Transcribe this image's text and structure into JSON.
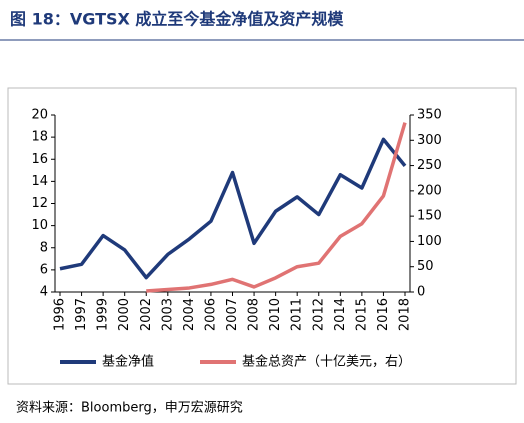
{
  "chart_data": {
    "type": "line",
    "title": "图 18：VGTSX 成立至今基金净值及资产规模",
    "categories": [
      "1996",
      "1997",
      "1999",
      "2000",
      "2002",
      "2003",
      "2004",
      "2006",
      "2007",
      "2008",
      "2010",
      "2011",
      "2012",
      "2014",
      "2015",
      "2016",
      "2018"
    ],
    "series": [
      {
        "name": "基金净值",
        "color": "#1f3a7a",
        "axis": "y",
        "values": [
          6.1,
          6.5,
          9.1,
          7.8,
          5.3,
          7.4,
          8.8,
          10.4,
          14.8,
          8.4,
          11.3,
          12.6,
          11.0,
          14.6,
          13.4,
          17.8,
          15.4
        ]
      },
      {
        "name": "基金总资产（十亿美元，右）",
        "color": "#e07373",
        "axis": "y2",
        "values": [
          null,
          null,
          null,
          null,
          2,
          5,
          8,
          15,
          25,
          10,
          28,
          50,
          57,
          110,
          135,
          190,
          335
        ]
      }
    ],
    "ylim": [
      4,
      20
    ],
    "yticks": [
      4,
      6,
      8,
      10,
      12,
      14,
      16,
      18,
      20
    ],
    "y2lim": [
      0,
      350
    ],
    "y2ticks": [
      0,
      50,
      100,
      150,
      200,
      250,
      300,
      350
    ],
    "legend": "bottom"
  },
  "source": "资料来源：Bloomberg，申万宏源研究"
}
